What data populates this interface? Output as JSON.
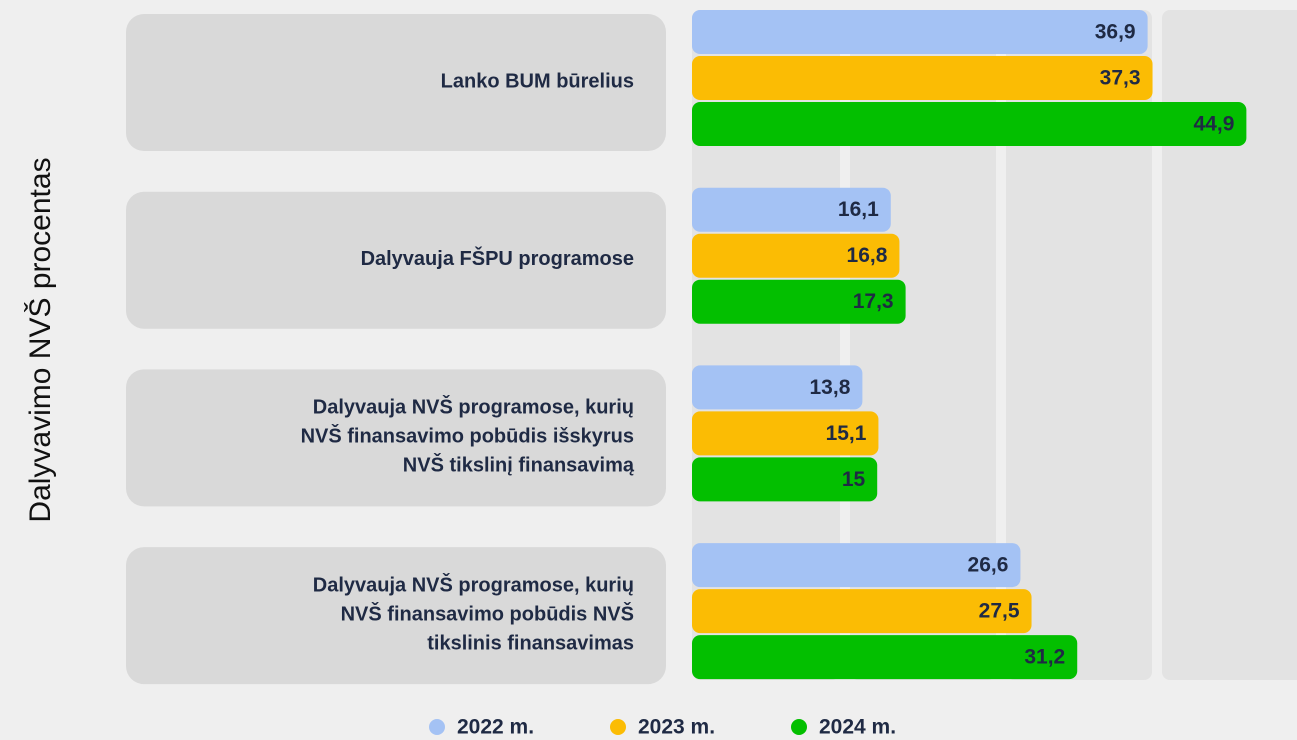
{
  "chart_data": {
    "type": "bar",
    "orientation": "horizontal",
    "y_label": "Dalyvavimo NVŠ procentas",
    "categories": [
      [
        "Lanko BUM būrelius"
      ],
      [
        "Dalyvauja FŠPU programose"
      ],
      [
        "Dalyvauja NVŠ programose, kurių",
        "NVŠ finansavimo pobūdis išskyrus",
        "NVŠ tikslinį finansavimą"
      ],
      [
        "Dalyvauja NVŠ programose, kurių",
        "NVŠ finansavimo pobūdis NVŠ",
        "tikslinis finansavimas"
      ]
    ],
    "series": [
      {
        "name": "2022 m.",
        "color": "#a4c2f4",
        "values": [
          36.9,
          16.1,
          13.8,
          26.6
        ],
        "value_labels": [
          "36,9",
          "16,1",
          "13,8",
          "26,6"
        ]
      },
      {
        "name": "2023 m.",
        "color": "#fbbc04",
        "values": [
          37.3,
          16.8,
          15.1,
          27.5
        ],
        "value_labels": [
          "37,3",
          "16,8",
          "15,1",
          "27,5"
        ]
      },
      {
        "name": "2024 m.",
        "color": "#03bf00",
        "values": [
          44.9,
          17.3,
          15,
          31.2
        ],
        "value_labels": [
          "44,9",
          "17,3",
          "15",
          "31,2"
        ]
      }
    ],
    "xlim": [
      0,
      49
    ],
    "legend": "bottom"
  }
}
